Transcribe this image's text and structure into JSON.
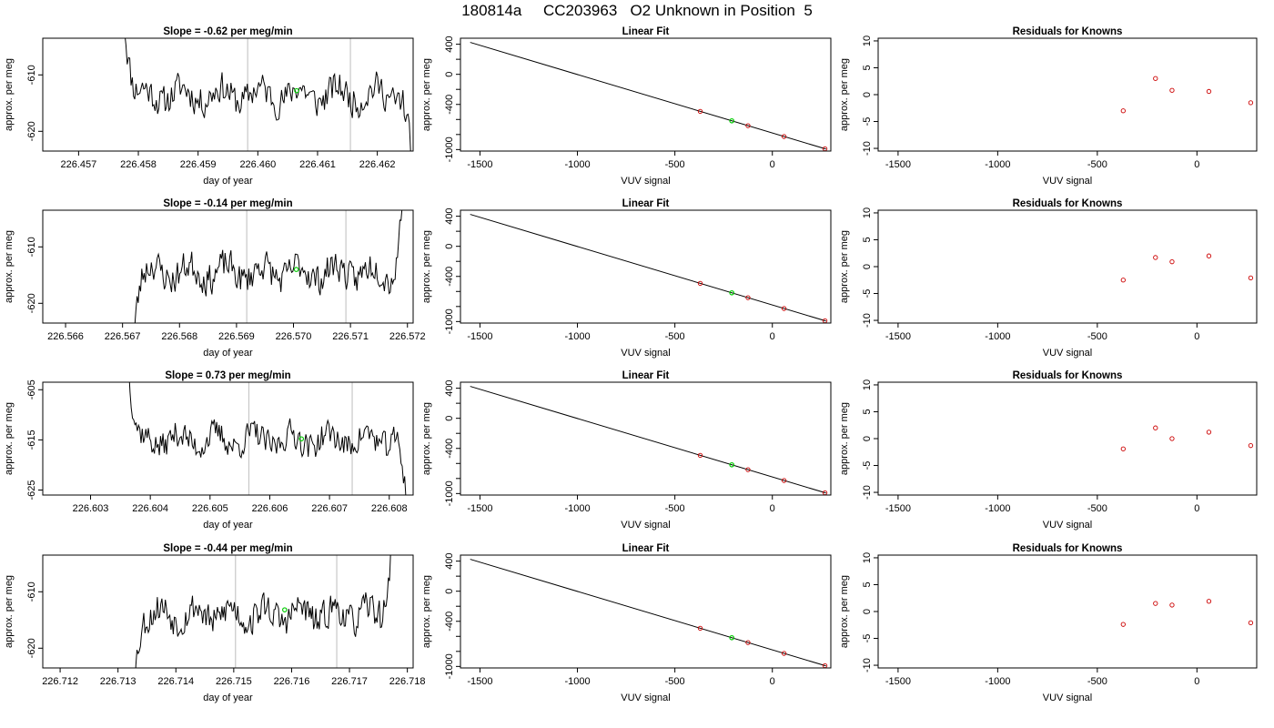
{
  "page": {
    "title": "180814a     CC203963   O2 Unknown in Position  5"
  },
  "colors": {
    "line": "#000000",
    "known_point": "#cc0000",
    "unknown_point": "#00cc00",
    "vline": "#c8c8c8",
    "frame": "#000000"
  },
  "chart_data": [
    {
      "type": "line",
      "title": "Slope =  -0.62  per meg/min",
      "xlabel": "day of year",
      "ylabel": "approx. per meg",
      "xlim": [
        226.4564,
        226.4626
      ],
      "ylim": [
        -623.5,
        -603.5
      ],
      "xticks": [
        "226.457",
        "226.458",
        "226.459",
        "226.460",
        "226.461",
        "226.462"
      ],
      "xtick_values": [
        226.457,
        226.458,
        226.459,
        226.46,
        226.461,
        226.462
      ],
      "yticks": [
        -620,
        -610
      ],
      "vlines": [
        226.45983,
        226.46155
      ],
      "unknown_point": {
        "x": 226.46065,
        "y": -612.8
      },
      "series": [
        {
          "x_start": 226.45775,
          "x_end": 226.46262,
          "center": -613.5,
          "head": -597,
          "tail": -633,
          "seed": 11
        }
      ]
    },
    {
      "type": "scatter",
      "title": "Linear Fit",
      "xlabel": "VUV signal",
      "ylabel": "approx. per meg",
      "xlim": [
        -1600,
        300
      ],
      "ylim": [
        -1020,
        480
      ],
      "xticks": [
        -1500,
        -1000,
        -500,
        0
      ],
      "yticks": [
        -1000,
        -800,
        -600,
        -400,
        -200,
        0,
        200,
        400
      ],
      "ytick_labels": [
        "-1000",
        "",
        "",
        "-400",
        "",
        "0",
        "",
        "400"
      ],
      "fit_line": [
        {
          "x": -1550,
          "y": 425
        },
        {
          "x": 275,
          "y": -993
        }
      ],
      "known_points": [
        {
          "x": -370,
          "y": -492
        },
        {
          "x": -125,
          "y": -683
        },
        {
          "x": 60,
          "y": -827
        },
        {
          "x": 270,
          "y": -990
        }
      ],
      "unknown_point": {
        "x": -208,
        "y": -618
      }
    },
    {
      "type": "scatter",
      "title": "Residuals for Knowns",
      "xlabel": "VUV signal",
      "ylabel": "approx. per meg",
      "xlim": [
        -1600,
        300
      ],
      "ylim": [
        -10.5,
        10.5
      ],
      "xticks": [
        -1500,
        -1000,
        -500,
        0
      ],
      "yticks": [
        -10,
        -5,
        0,
        5,
        10
      ],
      "known_points": [
        {
          "x": -370,
          "y": -3.0
        },
        {
          "x": -208,
          "y": 3.0
        },
        {
          "x": -125,
          "y": 0.8
        },
        {
          "x": 60,
          "y": 0.6
        },
        {
          "x": 270,
          "y": -1.5
        }
      ]
    },
    {
      "type": "line",
      "title": "Slope =  -0.14  per meg/min",
      "xlabel": "day of year",
      "ylabel": "approx. per meg",
      "xlim": [
        226.5656,
        226.5721
      ],
      "ylim": [
        -623.5,
        -603.5
      ],
      "xticks": [
        "226.566",
        "226.567",
        "226.568",
        "226.569",
        "226.570",
        "226.571",
        "226.572"
      ],
      "xtick_values": [
        226.566,
        226.567,
        226.568,
        226.569,
        226.57,
        226.571,
        226.572
      ],
      "yticks": [
        -620,
        -610
      ],
      "vlines": [
        226.56918,
        226.57092
      ],
      "unknown_point": {
        "x": 226.57005,
        "y": -614.0
      },
      "series": [
        {
          "x_start": 226.56715,
          "x_end": 226.57195,
          "center": -614.5,
          "head": -630,
          "tail": -597,
          "seed": 23
        }
      ]
    },
    {
      "type": "scatter",
      "title": "Linear Fit",
      "xlabel": "VUV signal",
      "ylabel": "approx. per meg",
      "xlim": [
        -1600,
        300
      ],
      "ylim": [
        -1020,
        480
      ],
      "xticks": [
        -1500,
        -1000,
        -500,
        0
      ],
      "yticks": [
        -1000,
        -800,
        -600,
        -400,
        -200,
        0,
        200,
        400
      ],
      "ytick_labels": [
        "-1000",
        "",
        "",
        "-400",
        "",
        "0",
        "",
        "400"
      ],
      "fit_line": [
        {
          "x": -1550,
          "y": 425
        },
        {
          "x": 275,
          "y": -993
        }
      ],
      "known_points": [
        {
          "x": -370,
          "y": -492
        },
        {
          "x": -125,
          "y": -683
        },
        {
          "x": 60,
          "y": -827
        },
        {
          "x": 270,
          "y": -990
        }
      ],
      "unknown_point": {
        "x": -208,
        "y": -618
      }
    },
    {
      "type": "scatter",
      "title": "Residuals for Knowns",
      "xlabel": "VUV signal",
      "ylabel": "approx. per meg",
      "xlim": [
        -1600,
        300
      ],
      "ylim": [
        -10.5,
        10.5
      ],
      "xticks": [
        -1500,
        -1000,
        -500,
        0
      ],
      "yticks": [
        -10,
        -5,
        0,
        5,
        10
      ],
      "known_points": [
        {
          "x": -370,
          "y": -2.5
        },
        {
          "x": -208,
          "y": 1.7
        },
        {
          "x": -125,
          "y": 0.9
        },
        {
          "x": 60,
          "y": 2.0
        },
        {
          "x": 270,
          "y": -2.1
        }
      ]
    },
    {
      "type": "line",
      "title": "Slope =  0.73  per meg/min",
      "xlabel": "day of year",
      "ylabel": "approx. per meg",
      "xlim": [
        226.6022,
        226.6084
      ],
      "ylim": [
        -626,
        -603.5
      ],
      "xticks": [
        "226.603",
        "226.604",
        "226.605",
        "226.606",
        "226.607",
        "226.608"
      ],
      "xtick_values": [
        226.603,
        226.604,
        226.605,
        226.606,
        226.607,
        226.608
      ],
      "yticks": [
        -625,
        -615,
        -605
      ],
      "vlines": [
        226.60565,
        226.60738
      ],
      "unknown_point": {
        "x": 226.60653,
        "y": -614.8
      },
      "series": [
        {
          "x_start": 226.60362,
          "x_end": 226.60832,
          "center": -615.0,
          "head": -598,
          "tail": -633,
          "seed": 37
        }
      ]
    },
    {
      "type": "scatter",
      "title": "Linear Fit",
      "xlabel": "VUV signal",
      "ylabel": "approx. per meg",
      "xlim": [
        -1600,
        300
      ],
      "ylim": [
        -1020,
        480
      ],
      "xticks": [
        -1500,
        -1000,
        -500,
        0
      ],
      "yticks": [
        -1000,
        -800,
        -600,
        -400,
        -200,
        0,
        200,
        400
      ],
      "ytick_labels": [
        "-1000",
        "",
        "",
        "-400",
        "",
        "0",
        "",
        "400"
      ],
      "fit_line": [
        {
          "x": -1550,
          "y": 425
        },
        {
          "x": 275,
          "y": -993
        }
      ],
      "known_points": [
        {
          "x": -370,
          "y": -492
        },
        {
          "x": -125,
          "y": -683
        },
        {
          "x": 60,
          "y": -827
        },
        {
          "x": 270,
          "y": -990
        }
      ],
      "unknown_point": {
        "x": -208,
        "y": -618
      }
    },
    {
      "type": "scatter",
      "title": "Residuals for Knowns",
      "xlabel": "VUV signal",
      "ylabel": "approx. per meg",
      "xlim": [
        -1600,
        300
      ],
      "ylim": [
        -10.5,
        10.5
      ],
      "xticks": [
        -1500,
        -1000,
        -500,
        0
      ],
      "yticks": [
        -10,
        -5,
        0,
        5,
        10
      ],
      "known_points": [
        {
          "x": -370,
          "y": -1.9
        },
        {
          "x": -208,
          "y": 2.0
        },
        {
          "x": -125,
          "y": 0.0
        },
        {
          "x": 60,
          "y": 1.2
        },
        {
          "x": 270,
          "y": -1.3
        }
      ]
    },
    {
      "type": "line",
      "title": "Slope =  -0.44  per meg/min",
      "xlabel": "day of year",
      "ylabel": "approx. per meg",
      "xlim": [
        226.7117,
        226.7181
      ],
      "ylim": [
        -623.5,
        -603.5
      ],
      "xticks": [
        "226.712",
        "226.713",
        "226.714",
        "226.715",
        "226.716",
        "226.717",
        "226.718"
      ],
      "xtick_values": [
        226.712,
        226.713,
        226.714,
        226.715,
        226.716,
        226.717,
        226.718
      ],
      "yticks": [
        -620,
        -610
      ],
      "vlines": [
        226.71503,
        226.71678
      ],
      "unknown_point": {
        "x": 226.71588,
        "y": -613.2
      },
      "series": [
        {
          "x_start": 226.71325,
          "x_end": 226.71775,
          "center": -614.0,
          "head": -630,
          "tail": -597,
          "seed": 53
        }
      ]
    },
    {
      "type": "scatter",
      "title": "Linear Fit",
      "xlabel": "VUV signal",
      "ylabel": "approx. per meg",
      "xlim": [
        -1600,
        300
      ],
      "ylim": [
        -1020,
        480
      ],
      "xticks": [
        -1500,
        -1000,
        -500,
        0
      ],
      "yticks": [
        -1000,
        -800,
        -600,
        -400,
        -200,
        0,
        200,
        400
      ],
      "ytick_labels": [
        "-1000",
        "",
        "",
        "-400",
        "",
        "0",
        "",
        "400"
      ],
      "fit_line": [
        {
          "x": -1550,
          "y": 425
        },
        {
          "x": 275,
          "y": -993
        }
      ],
      "known_points": [
        {
          "x": -370,
          "y": -492
        },
        {
          "x": -125,
          "y": -683
        },
        {
          "x": 60,
          "y": -827
        },
        {
          "x": 270,
          "y": -990
        }
      ],
      "unknown_point": {
        "x": -208,
        "y": -618
      }
    },
    {
      "type": "scatter",
      "title": "Residuals for Knowns",
      "xlabel": "VUV signal",
      "ylabel": "approx. per meg",
      "xlim": [
        -1600,
        300
      ],
      "ylim": [
        -10.5,
        10.5
      ],
      "xticks": [
        -1500,
        -1000,
        -500,
        0
      ],
      "yticks": [
        -10,
        -5,
        0,
        5,
        10
      ],
      "known_points": [
        {
          "x": -370,
          "y": -2.4
        },
        {
          "x": -208,
          "y": 1.5
        },
        {
          "x": -125,
          "y": 1.2
        },
        {
          "x": 60,
          "y": 1.9
        },
        {
          "x": 270,
          "y": -2.1
        }
      ]
    }
  ]
}
